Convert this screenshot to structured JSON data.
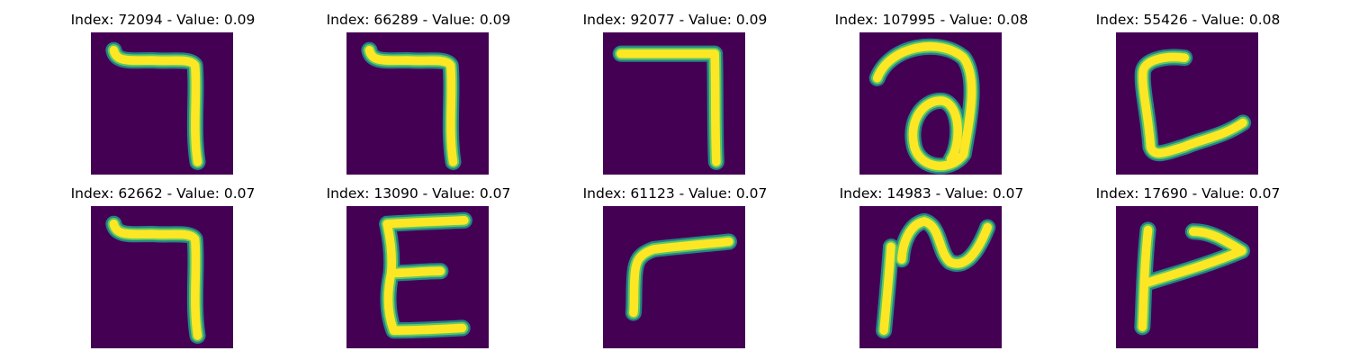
{
  "panels": [
    {
      "title": "Index: 72094 - Value: 0.09",
      "glyph": "seven-hook-icon"
    },
    {
      "title": "Index: 66289 - Value: 0.09",
      "glyph": "seven-hook-icon"
    },
    {
      "title": "Index: 92077 - Value: 0.09",
      "glyph": "seven-straight-icon"
    },
    {
      "title": "Index: 107995 - Value: 0.08",
      "glyph": "loop-a-icon"
    },
    {
      "title": "Index: 55426 - Value: 0.08",
      "glyph": "c-hook-icon"
    },
    {
      "title": "Index: 62662 - Value: 0.07",
      "glyph": "seven-hook-icon"
    },
    {
      "title": "Index: 13090 - Value: 0.07",
      "glyph": "e-shape-icon"
    },
    {
      "title": "Index: 61123 - Value: 0.07",
      "glyph": "r-shape-icon"
    },
    {
      "title": "Index: 14983 - Value: 0.07",
      "glyph": "squiggle-icon"
    },
    {
      "title": "Index: 17690 - Value: 0.07",
      "glyph": "flag-shape-icon"
    }
  ],
  "colors": {
    "background": "#440154",
    "stroke_core": "#fde725",
    "stroke_edge": "#21918c",
    "stroke_mid": "#5ec962"
  }
}
